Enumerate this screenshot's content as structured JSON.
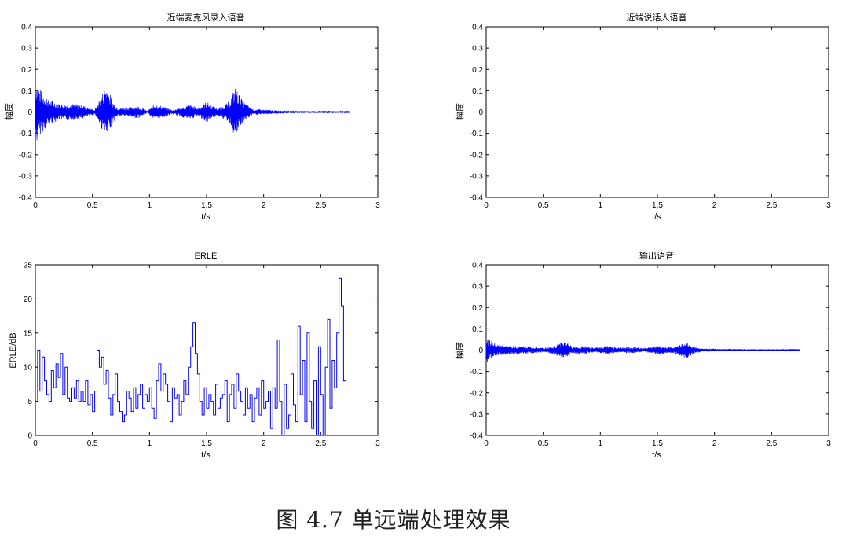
{
  "caption": "图 4.7 单远端处理效果",
  "colors": {
    "trace": "#0000ff",
    "axis": "#000000",
    "background": "#ffffff"
  },
  "chart_data": [
    {
      "type": "line",
      "title": "近端麦克风录入语音",
      "xlabel": "t/s",
      "ylabel": "幅度",
      "xlim": [
        0,
        3
      ],
      "ylim": [
        -0.4,
        0.4
      ],
      "xticks": [
        0,
        0.5,
        1,
        1.5,
        2,
        2.5,
        3
      ],
      "yticks": [
        -0.4,
        -0.3,
        -0.2,
        -0.1,
        0,
        0.1,
        0.2,
        0.3,
        0.4
      ],
      "grid": false,
      "series": [
        {
          "kind": "waveform",
          "x_end": 2.75,
          "envelope": [
            [
              0,
              0.16
            ],
            [
              0.05,
              0.1
            ],
            [
              0.12,
              0.06
            ],
            [
              0.2,
              0.04
            ],
            [
              0.3,
              0.04
            ],
            [
              0.4,
              0.035
            ],
            [
              0.52,
              0.01
            ],
            [
              0.57,
              0.07
            ],
            [
              0.62,
              0.13
            ],
            [
              0.68,
              0.05
            ],
            [
              0.72,
              0.02
            ],
            [
              0.8,
              0.02
            ],
            [
              0.9,
              0.03
            ],
            [
              0.98,
              0.005
            ],
            [
              1.05,
              0.04
            ],
            [
              1.15,
              0.02
            ],
            [
              1.2,
              0.01
            ],
            [
              1.35,
              0.035
            ],
            [
              1.43,
              0.02
            ],
            [
              1.5,
              0.05
            ],
            [
              1.55,
              0.03
            ],
            [
              1.6,
              0.015
            ],
            [
              1.7,
              0.05
            ],
            [
              1.75,
              0.12
            ],
            [
              1.82,
              0.05
            ],
            [
              1.9,
              0.015
            ],
            [
              2.1,
              0.008
            ],
            [
              2.4,
              0.004
            ],
            [
              2.55,
              0.006
            ],
            [
              2.75,
              0.002
            ]
          ]
        }
      ]
    },
    {
      "type": "line",
      "title": "近端说话人语音",
      "xlabel": "t/s",
      "ylabel": "幅度",
      "xlim": [
        0,
        3
      ],
      "ylim": [
        -0.4,
        0.4
      ],
      "xticks": [
        0,
        0.5,
        1,
        1.5,
        2,
        2.5,
        3
      ],
      "yticks": [
        -0.4,
        -0.3,
        -0.2,
        -0.1,
        0,
        0.1,
        0.2,
        0.3,
        0.4
      ],
      "grid": false,
      "series": [
        {
          "kind": "line",
          "x": [
            0,
            2.75
          ],
          "y": [
            0,
            0
          ]
        }
      ]
    },
    {
      "type": "line",
      "title": "ERLE",
      "xlabel": "t/s",
      "ylabel": "ERLE/dB",
      "xlim": [
        0,
        3
      ],
      "ylim": [
        0,
        25
      ],
      "xticks": [
        0,
        0.5,
        1,
        1.5,
        2,
        2.5,
        3
      ],
      "yticks": [
        0,
        5,
        10,
        15,
        20,
        25
      ],
      "grid": false,
      "series": [
        {
          "kind": "stairs",
          "x": [
            0,
            0.02,
            0.04,
            0.06,
            0.08,
            0.1,
            0.12,
            0.14,
            0.16,
            0.18,
            0.2,
            0.22,
            0.24,
            0.26,
            0.28,
            0.3,
            0.32,
            0.34,
            0.36,
            0.38,
            0.4,
            0.42,
            0.44,
            0.46,
            0.48,
            0.5,
            0.52,
            0.54,
            0.56,
            0.58,
            0.6,
            0.62,
            0.64,
            0.66,
            0.68,
            0.7,
            0.72,
            0.74,
            0.76,
            0.78,
            0.8,
            0.82,
            0.84,
            0.86,
            0.88,
            0.9,
            0.92,
            0.94,
            0.96,
            0.98,
            1,
            1.02,
            1.04,
            1.06,
            1.08,
            1.1,
            1.12,
            1.14,
            1.16,
            1.18,
            1.2,
            1.22,
            1.24,
            1.26,
            1.28,
            1.3,
            1.32,
            1.34,
            1.36,
            1.38,
            1.4,
            1.42,
            1.44,
            1.46,
            1.48,
            1.5,
            1.52,
            1.54,
            1.56,
            1.58,
            1.6,
            1.62,
            1.64,
            1.66,
            1.68,
            1.7,
            1.72,
            1.74,
            1.76,
            1.78,
            1.8,
            1.82,
            1.84,
            1.86,
            1.88,
            1.9,
            1.92,
            1.94,
            1.96,
            1.98,
            2,
            2.02,
            2.04,
            2.06,
            2.08,
            2.1,
            2.12,
            2.14,
            2.16,
            2.18,
            2.2,
            2.22,
            2.24,
            2.26,
            2.28,
            2.3,
            2.32,
            2.34,
            2.36,
            2.38,
            2.4,
            2.42,
            2.44,
            2.46,
            2.48,
            2.5,
            2.52,
            2.54,
            2.56,
            2.58,
            2.6,
            2.62,
            2.64,
            2.66,
            2.68,
            2.7
          ],
          "y": [
            5,
            12.5,
            6.5,
            11.5,
            8,
            6,
            5,
            9.5,
            7,
            10.5,
            8.5,
            12,
            6,
            10,
            5.5,
            5,
            7,
            5.5,
            8,
            5,
            6.5,
            5,
            8,
            4.5,
            6,
            3.5,
            6.5,
            12.5,
            10,
            11.5,
            7.5,
            9.5,
            5.5,
            3,
            6,
            9,
            5,
            3.5,
            2,
            3,
            6.5,
            5.5,
            3.5,
            7,
            4,
            6,
            7.5,
            4,
            6,
            5,
            7,
            4,
            2.5,
            8,
            10.5,
            6.5,
            9,
            7.5,
            5,
            2,
            7,
            5.5,
            6,
            3,
            5,
            8,
            6,
            10,
            13,
            16.5,
            12,
            9,
            5,
            3,
            7,
            4,
            6,
            5,
            3,
            7.5,
            4,
            5.5,
            6,
            8,
            2,
            6,
            7.5,
            4,
            9,
            6.5,
            5,
            3,
            7,
            4,
            6,
            2,
            5.5,
            7,
            3,
            8,
            4,
            5,
            6.5,
            1,
            7,
            4,
            14,
            5,
            0,
            7.5,
            1,
            3,
            9,
            4.5,
            2,
            16,
            6,
            11,
            2,
            15,
            5,
            1,
            8,
            0,
            13,
            6,
            0,
            10,
            17,
            4,
            11,
            7,
            15,
            23,
            19,
            8
          ]
        }
      ]
    },
    {
      "type": "line",
      "title": "输出语音",
      "xlabel": "t/s",
      "ylabel": "幅度",
      "xlim": [
        0,
        3
      ],
      "ylim": [
        -0.4,
        0.4
      ],
      "xticks": [
        0,
        0.5,
        1,
        1.5,
        2,
        2.5,
        3
      ],
      "yticks": [
        -0.4,
        -0.3,
        -0.2,
        -0.1,
        0,
        0.1,
        0.2,
        0.3,
        0.4
      ],
      "grid": false,
      "series": [
        {
          "kind": "waveform",
          "x_end": 2.75,
          "envelope": [
            [
              0,
              0.06
            ],
            [
              0.05,
              0.04
            ],
            [
              0.1,
              0.025
            ],
            [
              0.2,
              0.02
            ],
            [
              0.3,
              0.02
            ],
            [
              0.4,
              0.015
            ],
            [
              0.5,
              0.01
            ],
            [
              0.6,
              0.02
            ],
            [
              0.66,
              0.035
            ],
            [
              0.7,
              0.045
            ],
            [
              0.75,
              0.015
            ],
            [
              0.85,
              0.02
            ],
            [
              0.95,
              0.01
            ],
            [
              1.05,
              0.02
            ],
            [
              1.15,
              0.012
            ],
            [
              1.3,
              0.015
            ],
            [
              1.4,
              0.01
            ],
            [
              1.5,
              0.02
            ],
            [
              1.6,
              0.015
            ],
            [
              1.7,
              0.025
            ],
            [
              1.75,
              0.04
            ],
            [
              1.82,
              0.015
            ],
            [
              1.9,
              0.008
            ],
            [
              2.1,
              0.006
            ],
            [
              2.4,
              0.004
            ],
            [
              2.75,
              0.002
            ]
          ]
        }
      ]
    }
  ]
}
